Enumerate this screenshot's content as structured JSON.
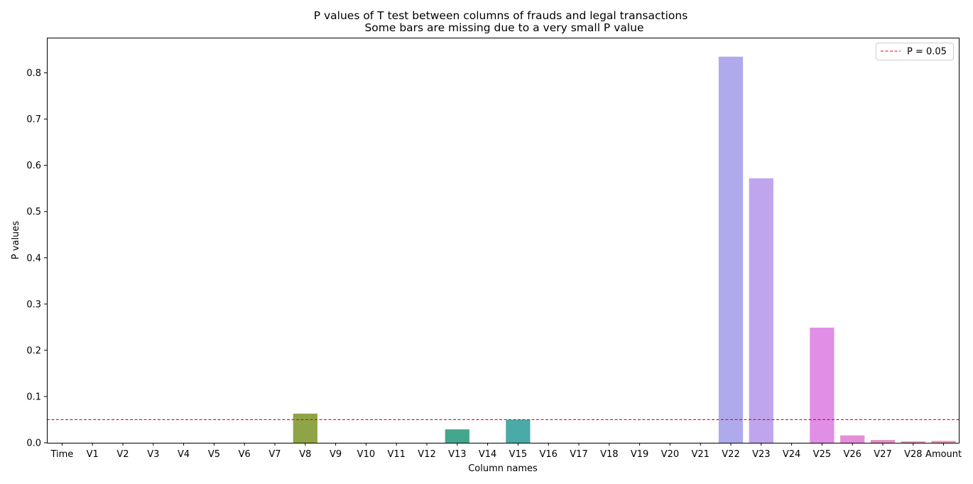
{
  "chart_data": {
    "type": "bar",
    "title": "P values of T test between columns of frauds and legal transactions",
    "subtitle": "Some bars are missing due to a very small P value",
    "xlabel": "Column names",
    "ylabel": "P values",
    "ylim": [
      0,
      0.875
    ],
    "yticks": [
      "0.0",
      "0.1",
      "0.2",
      "0.3",
      "0.4",
      "0.5",
      "0.6",
      "0.7",
      "0.8"
    ],
    "categories": [
      "Time",
      "V1",
      "V2",
      "V3",
      "V4",
      "V5",
      "V6",
      "V7",
      "V8",
      "V9",
      "V10",
      "V11",
      "V12",
      "V13",
      "V14",
      "V15",
      "V16",
      "V17",
      "V18",
      "V19",
      "V20",
      "V21",
      "V22",
      "V23",
      "V24",
      "V25",
      "V26",
      "V27",
      "V28",
      "Amount"
    ],
    "values": [
      0,
      0,
      0,
      0,
      0,
      0,
      0,
      0,
      0.063,
      0,
      0,
      0,
      0,
      0.029,
      0,
      0.05,
      0,
      0,
      0,
      0,
      0,
      0,
      0.835,
      0.572,
      0,
      0.249,
      0.016,
      0.006,
      0.003,
      0.004
    ],
    "colors": [
      "#f77189",
      "#f7754f",
      "#dc8932",
      "#c39532",
      "#ae9d31",
      "#97a431",
      "#77ab31",
      "#33b07a",
      "#8fa446",
      "#35ae93",
      "#36ada4",
      "#37abb4",
      "#38a9c5",
      "#44a68c",
      "#4aa4e3",
      "#4aaaa8",
      "#a48cf4",
      "#cc7af4",
      "#f45deb",
      "#f565cc",
      "#f66bad",
      "#f66d9a",
      "#aeaaec",
      "#bfa6ec",
      "#e18ee0",
      "#e18ee6",
      "#e58ed8",
      "#e28ec0",
      "#e090b8",
      "#e894b8"
    ],
    "reference_line": {
      "value": 0.05,
      "label": "P = 0.05",
      "color": "#ff0000",
      "style": "dashed"
    },
    "legend": {
      "position": "top-right",
      "entries": [
        "P = 0.05"
      ]
    },
    "grid": false
  }
}
